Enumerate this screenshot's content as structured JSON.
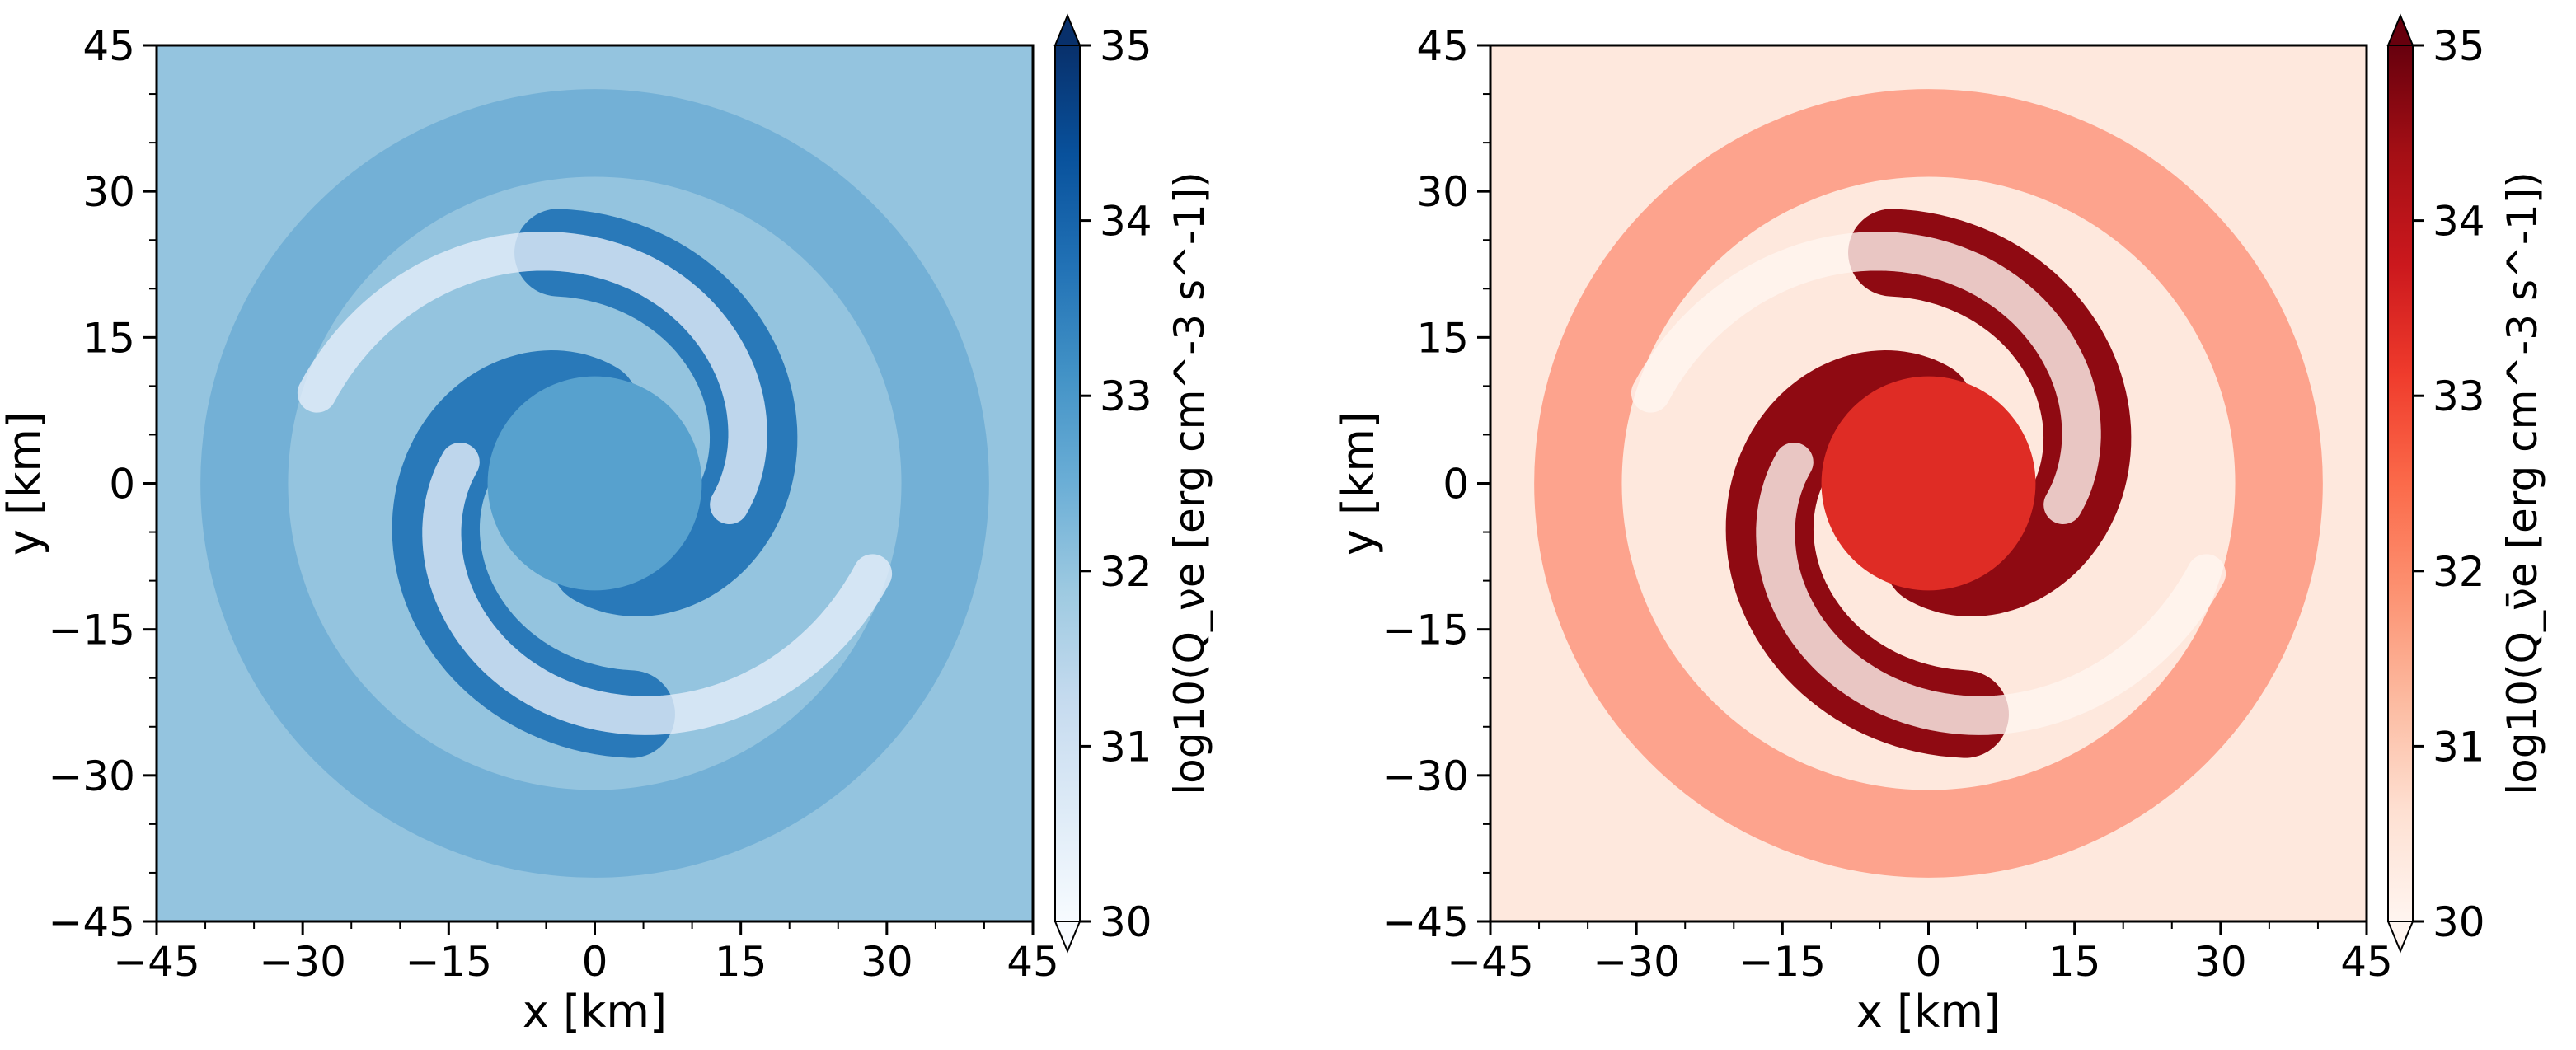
{
  "chart_data": [
    {
      "type": "heatmap",
      "title": "",
      "xlabel": "x [km]",
      "ylabel": "y [km]",
      "xlim": [
        -45,
        45
      ],
      "ylim": [
        -45,
        45
      ],
      "xticks": [
        -45,
        -30,
        -15,
        0,
        15,
        30,
        45
      ],
      "yticks": [
        -45,
        -30,
        -15,
        0,
        15,
        30,
        45
      ],
      "xtick_labels": [
        "−45",
        "−30",
        "−15",
        "0",
        "15",
        "30",
        "45"
      ],
      "ytick_labels": [
        "−45",
        "−30",
        "−15",
        "0",
        "15",
        "30",
        "45"
      ],
      "colormap": "Blues",
      "colorbar": {
        "label": "log10(Q_νe [erg cm^-3 s^-1])",
        "range": [
          30,
          35
        ],
        "ticks": [
          30,
          31,
          32,
          33,
          34,
          35
        ],
        "tick_labels": [
          "30",
          "31",
          "32",
          "33",
          "34",
          "35"
        ],
        "extend": "both",
        "colors": [
          "#f7fbff",
          "#deebf7",
          "#c6dbef",
          "#9ecae1",
          "#6baed6",
          "#4292c6",
          "#2171b5",
          "#08519c",
          "#08306b"
        ]
      },
      "field_description_levels": {
        "background": 32.0,
        "spiral_arm": 33.6,
        "core": 32.8,
        "inner_gap": 30.5
      }
    },
    {
      "type": "heatmap",
      "title": "",
      "xlabel": "x [km]",
      "ylabel": "y [km]",
      "xlim": [
        -45,
        45
      ],
      "ylim": [
        -45,
        45
      ],
      "xticks": [
        -45,
        -30,
        -15,
        0,
        15,
        30,
        45
      ],
      "yticks": [
        -45,
        -30,
        -15,
        0,
        15,
        30,
        45
      ],
      "xtick_labels": [
        "−45",
        "−30",
        "−15",
        "0",
        "15",
        "30",
        "45"
      ],
      "ytick_labels": [
        "−45",
        "−30",
        "−15",
        "0",
        "15",
        "30",
        "45"
      ],
      "colormap": "Reds",
      "colorbar": {
        "label": "log10(Q_ν̄e [erg cm^-3 s^-1])",
        "range": [
          30,
          35
        ],
        "ticks": [
          30,
          31,
          32,
          33,
          34,
          35
        ],
        "tick_labels": [
          "30",
          "31",
          "32",
          "33",
          "34",
          "35"
        ],
        "extend": "both",
        "colors": [
          "#fff5f0",
          "#fee0d2",
          "#fcbba1",
          "#fc9272",
          "#fb6a4a",
          "#ef3b2c",
          "#cb181d",
          "#a50f15",
          "#67000d"
        ]
      },
      "field_description_levels": {
        "background": 30.4,
        "spiral_arm": 34.6,
        "core": 33.4,
        "inner_gap": 30.0
      }
    }
  ]
}
